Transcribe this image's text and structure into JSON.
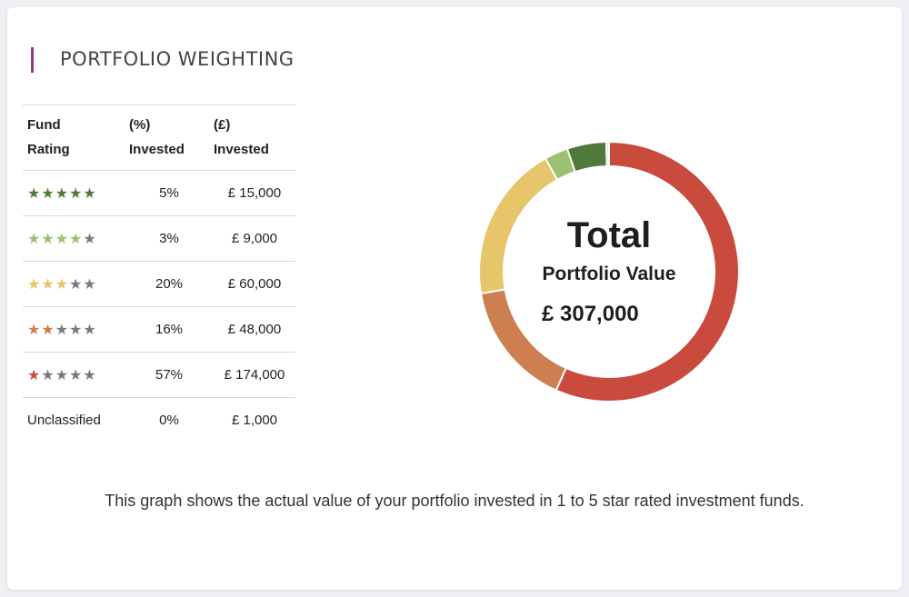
{
  "section_title": "PORTFOLIO WEIGHTING",
  "table": {
    "headers": {
      "rating_line1": "Fund",
      "rating_line2": "Rating",
      "pct_line1": "(%)",
      "pct_line2": "Invested",
      "gbp_line1": "(£)",
      "gbp_line2": "Invested"
    },
    "rows": [
      {
        "stars": 5,
        "color": "#4f7a3a",
        "label": "",
        "pct": "5%",
        "value": "£ 15,000"
      },
      {
        "stars": 4,
        "color": "#9cc06e",
        "label": "",
        "pct": "3%",
        "value": "£ 9,000"
      },
      {
        "stars": 3,
        "color": "#e6c56b",
        "label": "",
        "pct": "20%",
        "value": "£ 60,000"
      },
      {
        "stars": 2,
        "color": "#cd7f4f",
        "label": "",
        "pct": "16%",
        "value": "£ 48,000"
      },
      {
        "stars": 1,
        "color": "#c94b3d",
        "label": "",
        "pct": "57%",
        "value": "£ 174,000"
      },
      {
        "stars": 0,
        "color": "",
        "label": "Unclassified",
        "pct": "0%",
        "value": "£ 1,000"
      }
    ],
    "empty_star_color": "#7a7a7a"
  },
  "chart_data": {
    "type": "pie",
    "categories": [
      "5 star",
      "4 star",
      "3 star",
      "2 star",
      "1 star",
      "Unclassified"
    ],
    "values": [
      15000,
      9000,
      60000,
      48000,
      174000,
      1000
    ],
    "colors": [
      "#4f7a3a",
      "#9cc06e",
      "#e6c56b",
      "#cd7f4f",
      "#c94b3d",
      "#dddddd"
    ],
    "start_angle_deg": 0,
    "direction": "clockwise",
    "center_labels": [
      "Total",
      "Portfolio Value",
      "£ 307,000"
    ]
  },
  "center": {
    "line1": "Total",
    "line2": "Portfolio Value",
    "line3": "£ 307,000"
  },
  "caption": "This graph shows the actual value of your portfolio invested in 1 to 5 star rated investment funds."
}
